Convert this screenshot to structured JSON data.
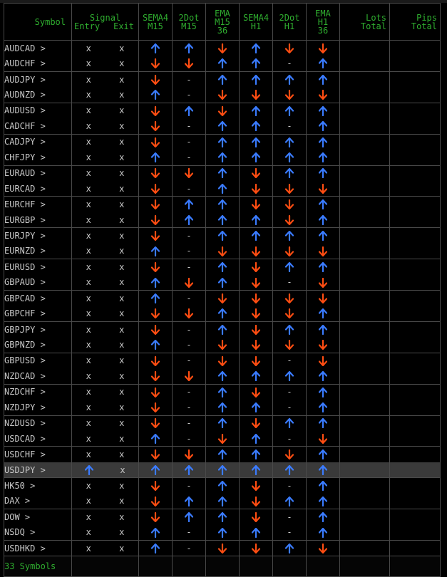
{
  "colors": {
    "up": "#3a7bff",
    "down": "#ff4d12",
    "header": "#2fae2f",
    "text": "#c8c8c8",
    "highlight": "#3a3a3a"
  },
  "headers": {
    "symbol": "Symbol",
    "signal": [
      "Signal"
    ],
    "signal_sub": [
      "Entry",
      "Exit"
    ],
    "cols": [
      [
        "SEMA4",
        "M15"
      ],
      [
        "2Dot",
        "M15"
      ],
      [
        "EMA",
        "M15",
        "36"
      ],
      [
        "SEMA4",
        "H1"
      ],
      [
        "2Dot",
        "H1"
      ],
      [
        "EMA",
        "H1",
        "36"
      ]
    ],
    "lots": [
      "Lots",
      "Total"
    ],
    "pips": [
      "Pips",
      "Total"
    ]
  },
  "rows": [
    {
      "s": "AUDCAD >",
      "e": "x",
      "x": "x",
      "v": [
        "u",
        "u",
        "d",
        "u",
        "d",
        "d"
      ]
    },
    {
      "s": "AUDCHF >",
      "e": "x",
      "x": "x",
      "v": [
        "d",
        "d",
        "u",
        "u",
        "-",
        "u"
      ]
    },
    {
      "s": "AUDJPY >",
      "e": "x",
      "x": "x",
      "v": [
        "d",
        "-",
        "u",
        "u",
        "u",
        "u"
      ]
    },
    {
      "s": "AUDNZD >",
      "e": "x",
      "x": "x",
      "v": [
        "u",
        "-",
        "d",
        "d",
        "d",
        "d"
      ]
    },
    {
      "s": "AUDUSD >",
      "e": "x",
      "x": "x",
      "v": [
        "d",
        "u",
        "d",
        "u",
        "u",
        "u"
      ]
    },
    {
      "s": "CADCHF >",
      "e": "x",
      "x": "x",
      "v": [
        "d",
        "-",
        "u",
        "u",
        "-",
        "u"
      ]
    },
    {
      "s": "CADJPY >",
      "e": "x",
      "x": "x",
      "v": [
        "d",
        "-",
        "u",
        "u",
        "u",
        "u"
      ]
    },
    {
      "s": "CHFJPY >",
      "e": "x",
      "x": "x",
      "v": [
        "u",
        "-",
        "u",
        "u",
        "u",
        "u"
      ]
    },
    {
      "s": "EURAUD >",
      "e": "x",
      "x": "x",
      "v": [
        "d",
        "d",
        "u",
        "d",
        "u",
        "u"
      ]
    },
    {
      "s": "EURCAD >",
      "e": "x",
      "x": "x",
      "v": [
        "d",
        "-",
        "u",
        "d",
        "d",
        "d"
      ]
    },
    {
      "s": "EURCHF >",
      "e": "x",
      "x": "x",
      "v": [
        "d",
        "u",
        "u",
        "d",
        "d",
        "u"
      ]
    },
    {
      "s": "EURGBP >",
      "e": "x",
      "x": "x",
      "v": [
        "d",
        "u",
        "u",
        "u",
        "d",
        "u"
      ]
    },
    {
      "s": "EURJPY >",
      "e": "x",
      "x": "x",
      "v": [
        "d",
        "-",
        "u",
        "u",
        "u",
        "u"
      ]
    },
    {
      "s": "EURNZD >",
      "e": "x",
      "x": "x",
      "v": [
        "u",
        "-",
        "d",
        "d",
        "d",
        "d"
      ]
    },
    {
      "s": "EURUSD >",
      "e": "x",
      "x": "x",
      "v": [
        "d",
        "-",
        "u",
        "d",
        "u",
        "u"
      ]
    },
    {
      "s": "GBPAUD >",
      "e": "x",
      "x": "x",
      "v": [
        "u",
        "d",
        "u",
        "d",
        "-",
        "d"
      ]
    },
    {
      "s": "GBPCAD >",
      "e": "x",
      "x": "x",
      "v": [
        "u",
        "-",
        "d",
        "d",
        "d",
        "d"
      ]
    },
    {
      "s": "GBPCHF >",
      "e": "x",
      "x": "x",
      "v": [
        "d",
        "d",
        "u",
        "d",
        "d",
        "u"
      ]
    },
    {
      "s": "GBPJPY >",
      "e": "x",
      "x": "x",
      "v": [
        "d",
        "-",
        "u",
        "d",
        "u",
        "u"
      ]
    },
    {
      "s": "GBPNZD >",
      "e": "x",
      "x": "x",
      "v": [
        "u",
        "-",
        "d",
        "d",
        "d",
        "d"
      ]
    },
    {
      "s": "GBPUSD >",
      "e": "x",
      "x": "x",
      "v": [
        "d",
        "-",
        "d",
        "d",
        "-",
        "d"
      ]
    },
    {
      "s": "NZDCAD >",
      "e": "x",
      "x": "x",
      "v": [
        "d",
        "d",
        "u",
        "u",
        "u",
        "u"
      ]
    },
    {
      "s": "NZDCHF >",
      "e": "x",
      "x": "x",
      "v": [
        "d",
        "-",
        "u",
        "d",
        "-",
        "u"
      ]
    },
    {
      "s": "NZDJPY >",
      "e": "x",
      "x": "x",
      "v": [
        "d",
        "-",
        "u",
        "u",
        "-",
        "u"
      ]
    },
    {
      "s": "NZDUSD >",
      "e": "x",
      "x": "x",
      "v": [
        "d",
        "-",
        "u",
        "d",
        "u",
        "u"
      ]
    },
    {
      "s": "USDCAD >",
      "e": "x",
      "x": "x",
      "v": [
        "u",
        "-",
        "d",
        "u",
        "-",
        "d"
      ]
    },
    {
      "s": "USDCHF >",
      "e": "x",
      "x": "x",
      "v": [
        "d",
        "d",
        "u",
        "u",
        "d",
        "u"
      ]
    },
    {
      "s": "USDJPY >",
      "e": "↑",
      "x": "x",
      "v": [
        "u",
        "u",
        "u",
        "u",
        "u",
        "u"
      ],
      "hl": true
    },
    {
      "s": "HK50 >",
      "e": "x",
      "x": "x",
      "v": [
        "d",
        "-",
        "u",
        "d",
        "-",
        "u"
      ]
    },
    {
      "s": "DAX >",
      "e": "x",
      "x": "x",
      "v": [
        "d",
        "u",
        "u",
        "d",
        "u",
        "u"
      ]
    },
    {
      "s": "DOW >",
      "e": "x",
      "x": "x",
      "v": [
        "d",
        "u",
        "u",
        "d",
        "-",
        "u"
      ]
    },
    {
      "s": "NSDQ >",
      "e": "x",
      "x": "x",
      "v": [
        "u",
        "-",
        "u",
        "u",
        "-",
        "u"
      ]
    },
    {
      "s": "USDHKD >",
      "e": "x",
      "x": "x",
      "v": [
        "u",
        "-",
        "d",
        "d",
        "u",
        "d"
      ]
    }
  ],
  "footer": {
    "count_label": "33 Symbols"
  }
}
